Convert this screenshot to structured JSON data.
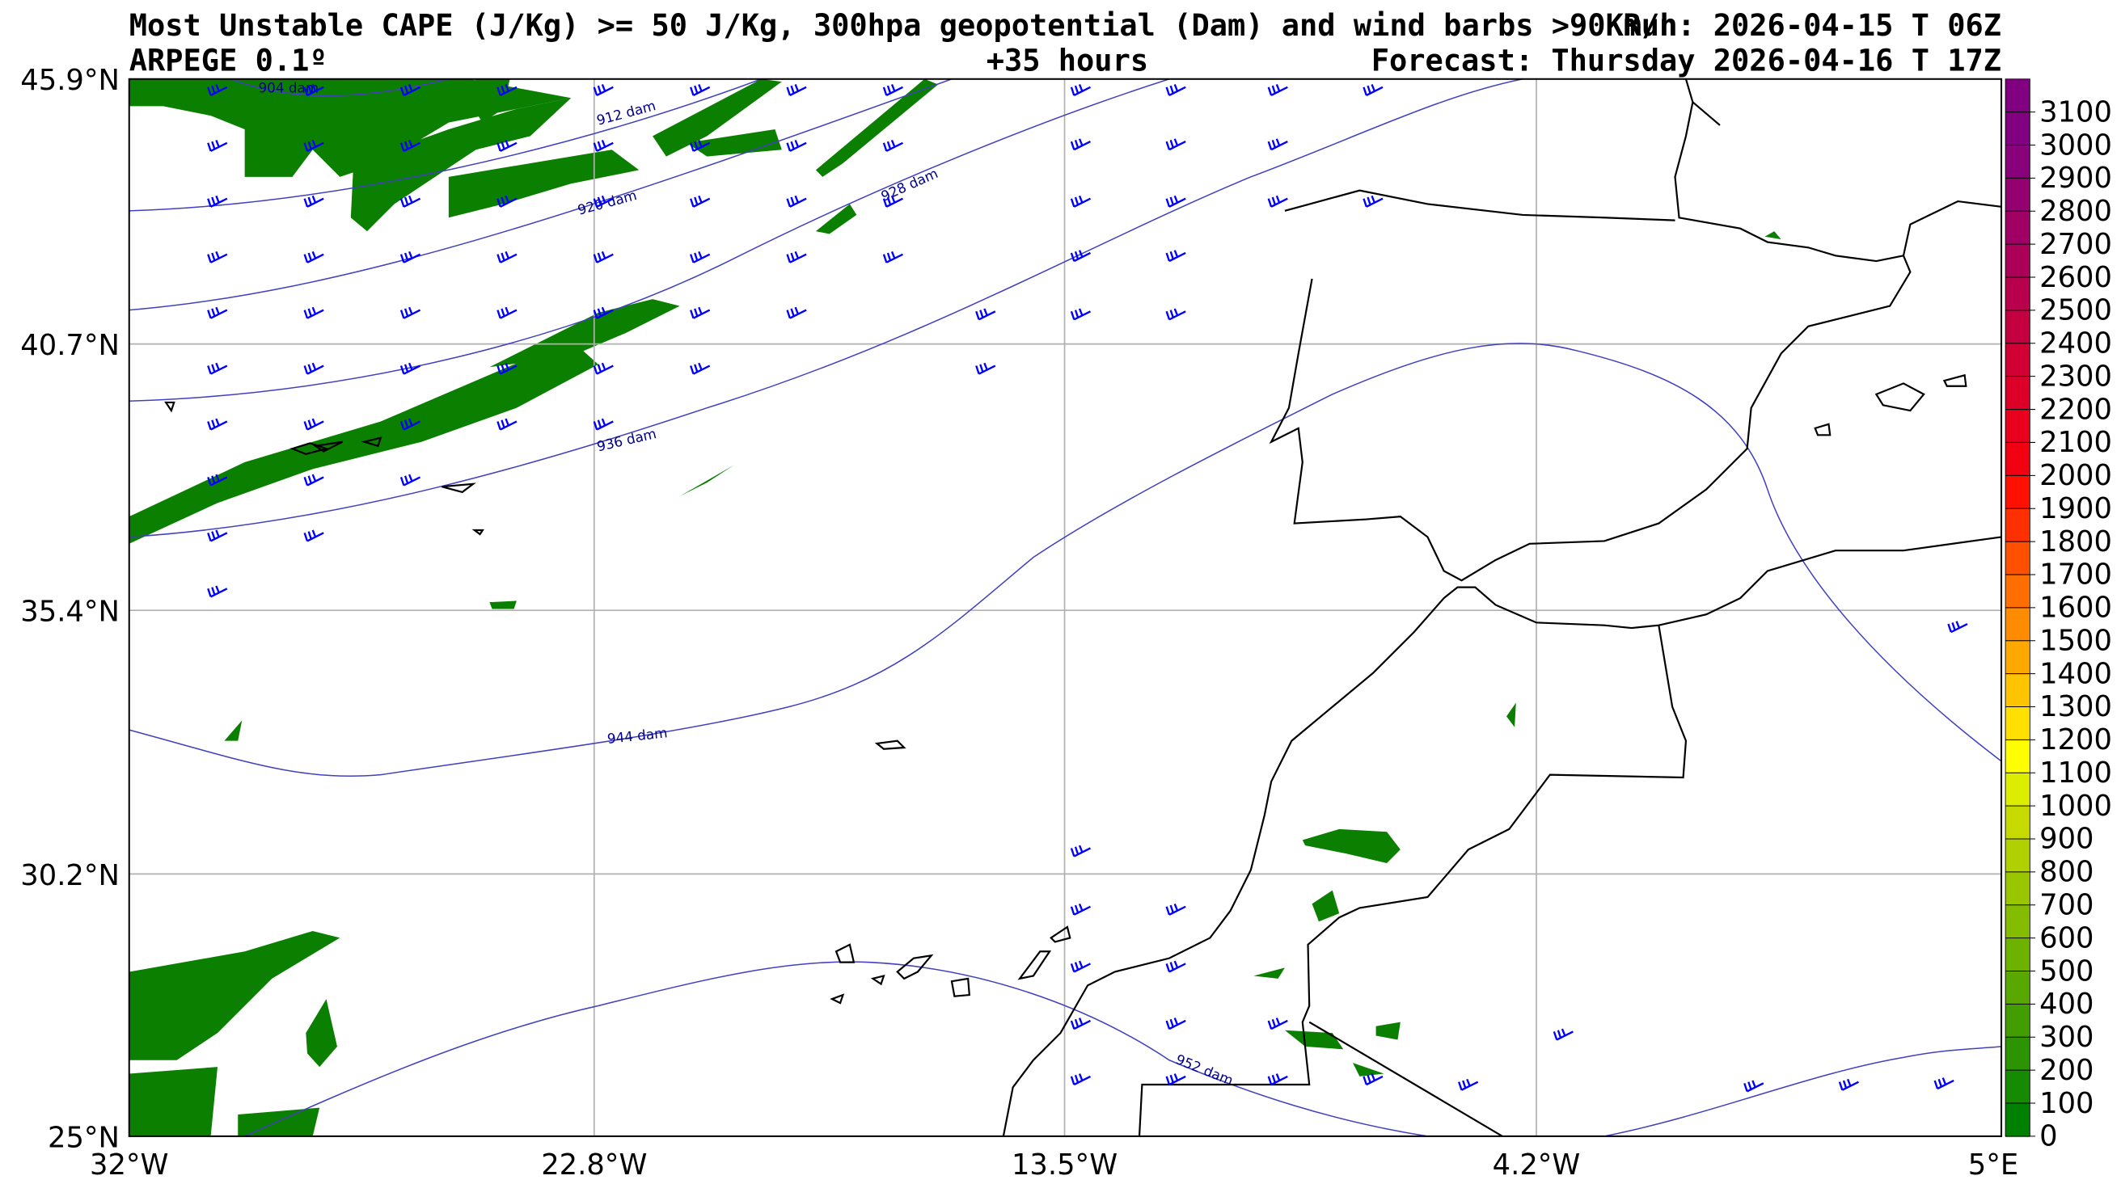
{
  "header": {
    "title_line1": "Most Unstable CAPE (J/Kg) >= 50 J/Kg, 300hpa geopotential (Dam) and wind barbs >90Km/h",
    "run": "Run: 2026-04-15 T 06Z",
    "model": "ARPEGE 0.1º",
    "lead": "+35 hours",
    "forecast": "Forecast: Thursday 2026-04-16 T 17Z"
  },
  "axes": {
    "lat_labels": [
      "45.9°N",
      "40.7°N",
      "35.4°N",
      "30.2°N",
      "25°N"
    ],
    "lon_labels": [
      "32°W",
      "22.8°W",
      "13.5°W",
      "4.2°W",
      "5°E"
    ]
  },
  "contour_labels": [
    "904 dam",
    "912 dam",
    "920 dam",
    "928 dam",
    "936 dam",
    "944 dam",
    "952 dam"
  ],
  "colorbar": {
    "labels": [
      "0",
      "100",
      "200",
      "300",
      "400",
      "500",
      "600",
      "700",
      "800",
      "900",
      "1000",
      "1100",
      "1200",
      "1300",
      "1400",
      "1500",
      "1600",
      "1700",
      "1800",
      "1900",
      "2000",
      "2100",
      "2200",
      "2300",
      "2400",
      "2500",
      "2600",
      "2700",
      "2800",
      "2900",
      "3000",
      "3100"
    ],
    "colors": [
      "#008000",
      "#168a00",
      "#2c9400",
      "#429e00",
      "#58a800",
      "#6eb200",
      "#84bc00",
      "#9ac600",
      "#b0d000",
      "#c6da00",
      "#dcee00",
      "#ffff00",
      "#ffe000",
      "#ffc400",
      "#ffa800",
      "#ff8c00",
      "#ff6e00",
      "#ff5000",
      "#ff3000",
      "#ff1000",
      "#f00010",
      "#e8001c",
      "#dc0028",
      "#d00034",
      "#c40040",
      "#b8004c",
      "#ac0058",
      "#a00064",
      "#940070",
      "#88007a",
      "#800080",
      "#800080"
    ]
  },
  "chart_data": {
    "type": "map",
    "title": "Most Unstable CAPE (J/Kg) >= 50 J/Kg, 300hpa geopotential (Dam) and wind barbs >90Km/h",
    "lon_range": [
      -32,
      5
    ],
    "lat_range": [
      25,
      45.9
    ],
    "geopotential_contours_dam": [
      904,
      912,
      920,
      928,
      936,
      944,
      952
    ],
    "cape_range": [
      0,
      3200
    ],
    "cape_step": 100
  }
}
